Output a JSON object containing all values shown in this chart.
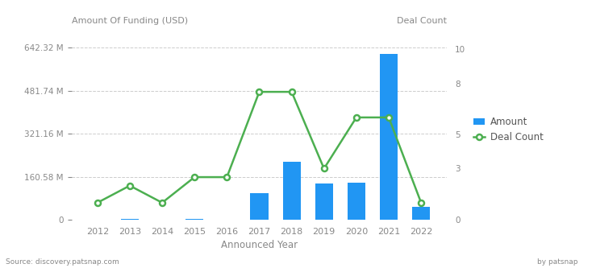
{
  "years": [
    2012,
    2013,
    2014,
    2015,
    2016,
    2017,
    2018,
    2019,
    2020,
    2021,
    2022
  ],
  "bar_values_M": [
    1.5,
    3.0,
    0.5,
    2.0,
    1.5,
    100,
    215,
    135,
    138,
    618,
    48
  ],
  "deal_counts": [
    1,
    2,
    1,
    2.5,
    2.5,
    7.5,
    7.5,
    3,
    6,
    6,
    1
  ],
  "bar_color": "#2196F3",
  "line_color": "#4CAF50",
  "yticks_left": [
    0,
    160.58,
    321.16,
    481.74,
    642.32
  ],
  "yticks_left_labels": [
    "0",
    "160.58 M",
    "321.16 M",
    "481.74 M",
    "642.32 M"
  ],
  "yticks_right": [
    0,
    3,
    5,
    8,
    10
  ],
  "ylim_left": [
    0,
    700
  ],
  "ylim_right": [
    0,
    11.0
  ],
  "xlabel": "Announced Year",
  "ylabel_left": "Amount Of Funding (USD)",
  "ylabel_right": "Deal Count",
  "source_text": "Source: discovery.patsnap.com",
  "legend_amount_label": "Amount",
  "legend_deal_label": "Deal Count",
  "background_color": "#ffffff",
  "grid_color": "#cccccc",
  "axis_label_color": "#888888",
  "title_color": "#555555"
}
